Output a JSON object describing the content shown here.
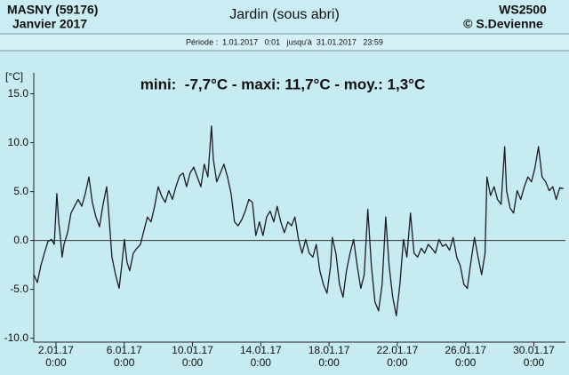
{
  "chart_data": {
    "type": "line",
    "station": "MASNY (59176)",
    "month": "Janvier 2017",
    "title": "Jardin (sous abri)",
    "device": "WS2500",
    "credit": "© S.Devienne",
    "period": "Période :  1.01.2017   0:01   jusqu'à  31.01.2017   23:59",
    "annotation": "mini:  -7,7°C - maxi: 11,7°C - moy.: 1,3°C",
    "y_label": "[°C]",
    "color": "#1b1b28",
    "xlim": [
      -0.3,
      30.85
    ],
    "xticks": [
      {
        "value": 1,
        "label": "2.01.17\n0:00"
      },
      {
        "value": 5,
        "label": "6.01.17\n0:00"
      },
      {
        "value": 9,
        "label": "10.01.17\n0:00"
      },
      {
        "value": 13,
        "label": "14.01.17\n0:00"
      },
      {
        "value": 17,
        "label": "18.01.17\n0:00"
      },
      {
        "value": 21,
        "label": "22.01.17\n0:00"
      },
      {
        "value": 25,
        "label": "26.01.17\n0:00"
      },
      {
        "value": 29,
        "label": "30.01.17\n0:00"
      }
    ],
    "ylim": [
      -10.4,
      16.6
    ],
    "yticks": [
      {
        "value": 15,
        "label": "15.0"
      },
      {
        "value": 10,
        "label": "10.0"
      },
      {
        "value": 5,
        "label": "5.0"
      },
      {
        "value": 0,
        "label": "0.0"
      },
      {
        "value": -5,
        "label": "-5.0"
      },
      {
        "value": -10,
        "label": "-10.0"
      }
    ],
    "x": [
      -0.3,
      -0.09,
      0.11,
      0.32,
      0.53,
      0.74,
      0.9,
      1.05,
      1.16,
      1.26,
      1.36,
      1.47,
      1.68,
      1.88,
      2.09,
      2.3,
      2.51,
      2.72,
      2.93,
      3.13,
      3.34,
      3.55,
      3.76,
      3.97,
      4.07,
      4.28,
      4.49,
      4.7,
      4.85,
      5.01,
      5.16,
      5.32,
      5.53,
      5.74,
      5.95,
      6.15,
      6.36,
      6.57,
      6.78,
      6.99,
      7.2,
      7.4,
      7.61,
      7.82,
      8.03,
      8.24,
      8.45,
      8.65,
      8.86,
      9.07,
      9.28,
      9.49,
      9.69,
      9.9,
      10.11,
      10.22,
      10.42,
      10.63,
      10.84,
      11.05,
      11.26,
      11.46,
      11.67,
      11.88,
      12.09,
      12.3,
      12.51,
      12.71,
      12.92,
      13.13,
      13.34,
      13.55,
      13.76,
      13.96,
      14.17,
      14.38,
      14.59,
      14.8,
      15.0,
      15.21,
      15.42,
      15.63,
      15.84,
      16.05,
      16.25,
      16.46,
      16.67,
      16.88,
      17.09,
      17.19,
      17.4,
      17.61,
      17.82,
      18.02,
      18.23,
      18.44,
      18.65,
      18.86,
      19.06,
      19.27,
      19.48,
      19.69,
      19.9,
      20.11,
      20.32,
      20.52,
      20.73,
      20.94,
      21.15,
      21.36,
      21.56,
      21.77,
      21.98,
      22.19,
      22.4,
      22.6,
      22.81,
      23.02,
      23.23,
      23.44,
      23.65,
      23.85,
      24.06,
      24.27,
      24.48,
      24.69,
      24.9,
      25.1,
      25.31,
      25.52,
      25.73,
      25.94,
      26.14,
      26.25,
      26.46,
      26.67,
      26.87,
      27.08,
      27.29,
      27.4,
      27.61,
      27.81,
      28.02,
      28.23,
      28.44,
      28.65,
      28.86,
      29.06,
      29.27,
      29.48,
      29.69,
      29.9,
      30.11,
      30.31,
      30.52,
      30.73
    ],
    "values": [
      -3.5,
      -4.3,
      -2.6,
      -1.3,
      -0.1,
      0.1,
      -0.4,
      4.8,
      1.9,
      0.3,
      -1.7,
      -0.4,
      0.8,
      2.8,
      3.5,
      4.2,
      3.5,
      4.8,
      6.5,
      3.9,
      2.4,
      1.4,
      3.7,
      5.5,
      3.3,
      -1.7,
      -3.5,
      -4.9,
      -2.6,
      0.1,
      -2.2,
      -3.1,
      -1.3,
      -0.8,
      -0.4,
      1.0,
      2.4,
      1.9,
      3.5,
      5.5,
      4.5,
      3.9,
      5.1,
      4.2,
      5.5,
      6.6,
      6.9,
      5.5,
      6.9,
      7.5,
      6.5,
      5.5,
      7.8,
      6.5,
      11.7,
      8.3,
      6.0,
      6.9,
      7.8,
      6.5,
      4.8,
      1.9,
      1.5,
      2.1,
      3.0,
      4.2,
      3.9,
      0.5,
      1.9,
      0.5,
      2.4,
      3.0,
      1.9,
      3.5,
      1.9,
      0.8,
      1.9,
      1.5,
      2.4,
      0.1,
      -1.3,
      0.1,
      -1.3,
      -1.7,
      -0.4,
      -3.1,
      -4.5,
      -5.4,
      -2.6,
      0.3,
      -1.3,
      -4.5,
      -5.8,
      -3.1,
      -1.3,
      0.1,
      -2.6,
      -4.9,
      -3.5,
      3.2,
      -2.6,
      -6.3,
      -7.2,
      -4.5,
      2.4,
      -2.6,
      -5.8,
      -7.7,
      -4.5,
      0.1,
      -1.7,
      2.8,
      -1.3,
      -1.7,
      -0.8,
      -1.3,
      -0.4,
      -0.8,
      -1.3,
      0.1,
      -0.6,
      -0.4,
      -1.0,
      0.3,
      -1.7,
      -2.6,
      -4.5,
      -4.9,
      -2.2,
      0.3,
      -1.7,
      -3.5,
      -1.3,
      6.5,
      4.6,
      5.5,
      4.2,
      3.7,
      9.6,
      5.1,
      3.3,
      2.8,
      5.1,
      4.2,
      5.5,
      6.5,
      6.0,
      7.4,
      9.6,
      6.5,
      6.0,
      5.1,
      5.5,
      4.2,
      5.4,
      5.3
    ]
  }
}
